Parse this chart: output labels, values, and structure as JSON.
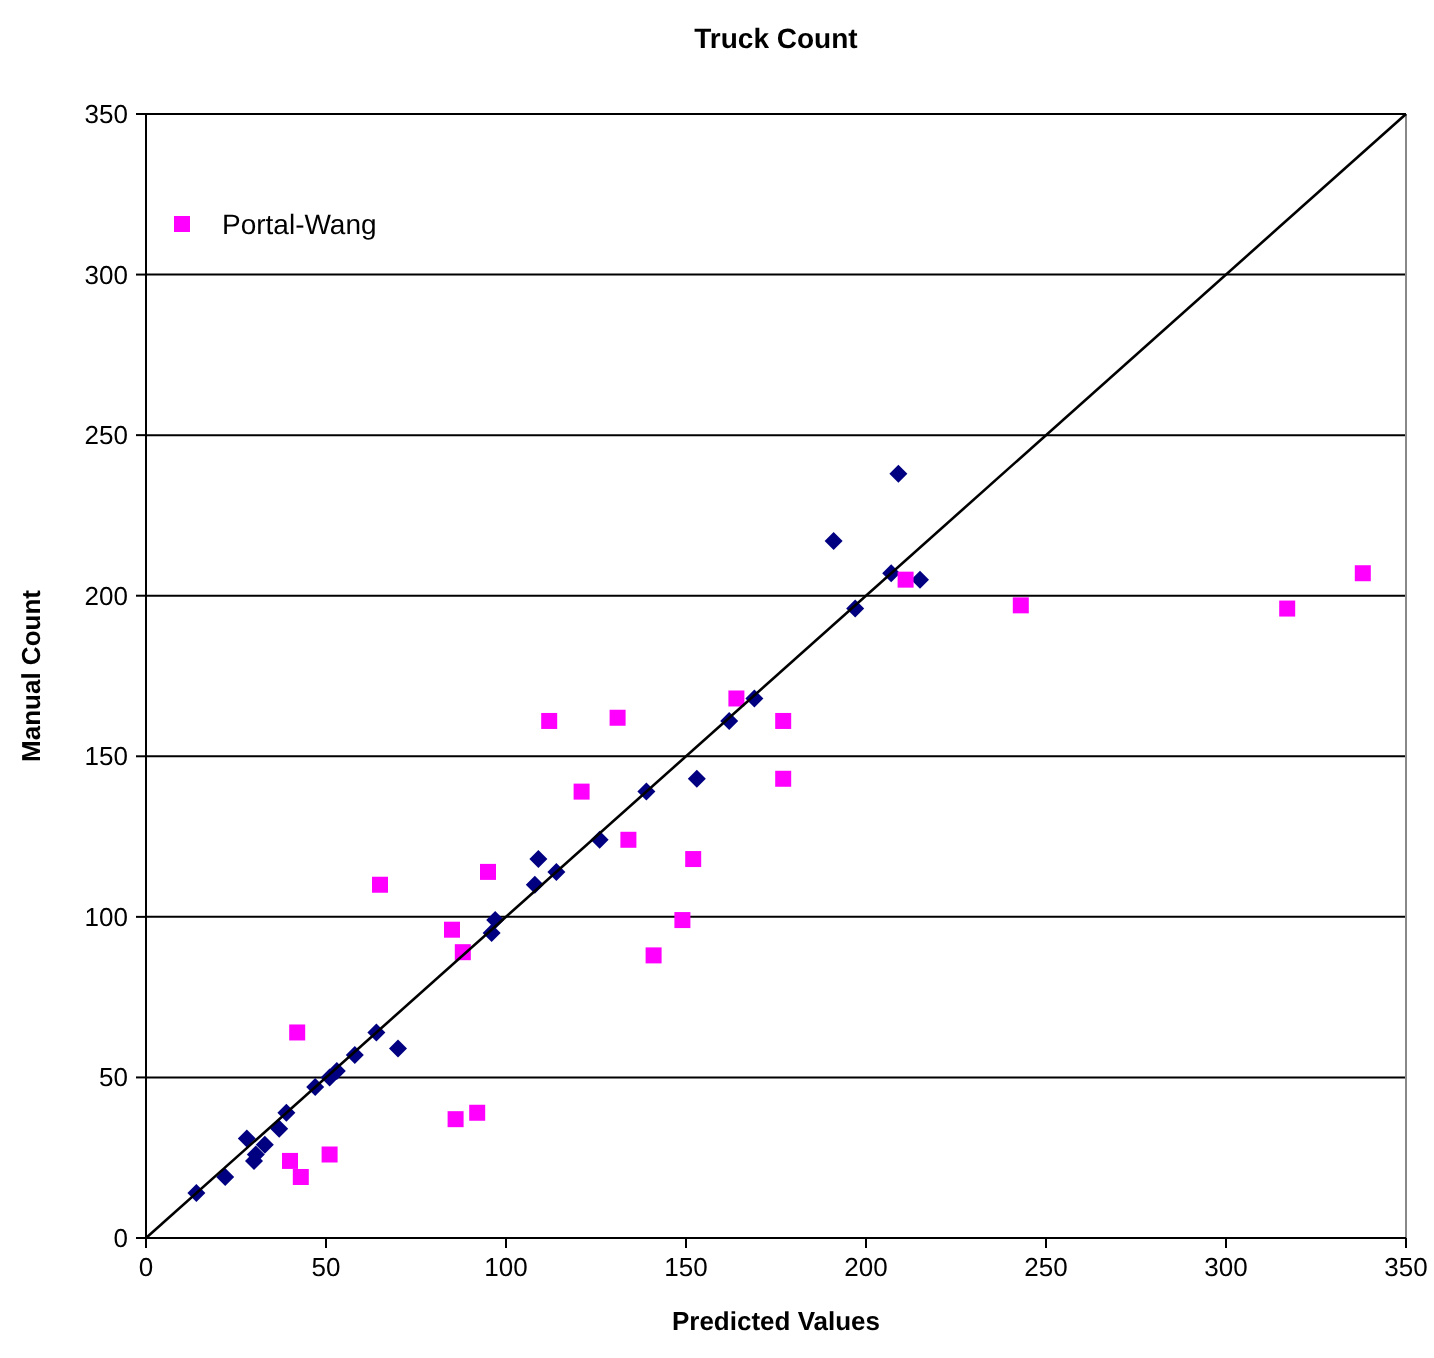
{
  "chart_data": {
    "type": "scatter",
    "title": "Truck Count",
    "xlabel": "Predicted Values",
    "ylabel": "Manual Count",
    "xlim": [
      0,
      350
    ],
    "ylim": [
      0,
      350
    ],
    "xticks": [
      0,
      50,
      100,
      150,
      200,
      250,
      300,
      350
    ],
    "yticks": [
      0,
      50,
      100,
      150,
      200,
      250,
      300,
      350
    ],
    "grid": "y",
    "legend": "top left",
    "series": [
      {
        "color": "#000080",
        "marker": "diamond",
        "x": [
          14,
          22,
          28,
          30,
          30.5,
          33,
          37,
          39,
          47,
          51,
          53,
          58,
          64,
          70,
          96,
          97,
          108,
          109,
          114,
          126,
          139,
          153,
          162,
          169,
          191,
          197,
          207,
          209,
          215
        ],
        "values": [
          14,
          19,
          31,
          24,
          26,
          29,
          34,
          39,
          47,
          50,
          52,
          57,
          64,
          59,
          95,
          99,
          110,
          118,
          114,
          124,
          139,
          143,
          161,
          168,
          217,
          196,
          207,
          238,
          205
        ]
      },
      {
        "name": "Portal-Wang",
        "color": "#ff00ff",
        "marker": "square",
        "x": [
          40,
          42,
          43,
          51,
          65,
          85,
          86,
          88,
          92,
          95,
          112,
          121,
          131,
          134,
          141,
          149,
          152,
          164,
          177,
          177,
          211,
          243,
          317,
          338
        ],
        "values": [
          24,
          64,
          19,
          26,
          110,
          96,
          37,
          89,
          39,
          114,
          161,
          139,
          162,
          124,
          88,
          99,
          118,
          168,
          161,
          143,
          205,
          197,
          196,
          207
        ]
      },
      {
        "type": "line",
        "color": "#000000",
        "marker": "none",
        "x": [
          0,
          350
        ],
        "values": [
          0,
          350
        ]
      }
    ]
  }
}
